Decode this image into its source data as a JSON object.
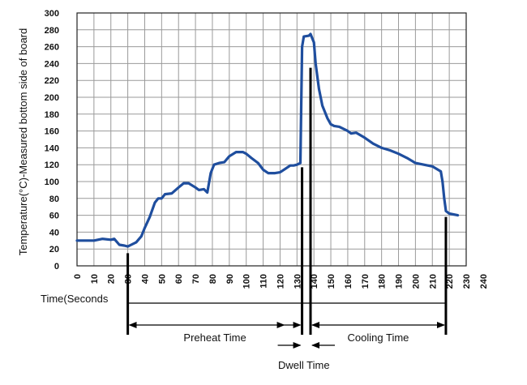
{
  "chart_data": {
    "type": "line",
    "title": "",
    "xlabel": "Time(Seconds",
    "ylabel": "Temperature(°C)-Measured bottom side of board",
    "xlim": [
      0,
      230
    ],
    "ylim": [
      0,
      300
    ],
    "x_ticks": [
      "0",
      "10",
      "20",
      "30",
      "40",
      "50",
      "60",
      "70",
      "80",
      "90",
      "100",
      "110",
      "120",
      "130",
      "140",
      "150",
      "160",
      "170",
      "180",
      "190",
      "200",
      "210",
      "220",
      "230",
      "240"
    ],
    "y_ticks": [
      "0",
      "20",
      "40",
      "60",
      "80",
      "100",
      "120",
      "140",
      "160",
      "180",
      "200",
      "220",
      "240",
      "260",
      "280",
      "300"
    ],
    "grid": true,
    "series": [
      {
        "color": "#1f4e9e",
        "points": [
          [
            0,
            30
          ],
          [
            10,
            30
          ],
          [
            15,
            32
          ],
          [
            20,
            31
          ],
          [
            22,
            32
          ],
          [
            25,
            25
          ],
          [
            28,
            24
          ],
          [
            30,
            23
          ],
          [
            32,
            25
          ],
          [
            35,
            28
          ],
          [
            38,
            35
          ],
          [
            40,
            45
          ],
          [
            43,
            58
          ],
          [
            46,
            75
          ],
          [
            48,
            80
          ],
          [
            50,
            80
          ],
          [
            52,
            85
          ],
          [
            56,
            86
          ],
          [
            60,
            93
          ],
          [
            63,
            98
          ],
          [
            66,
            98
          ],
          [
            70,
            93
          ],
          [
            72,
            90
          ],
          [
            75,
            91
          ],
          [
            77,
            87
          ],
          [
            79,
            110
          ],
          [
            81,
            120
          ],
          [
            84,
            122
          ],
          [
            87,
            123
          ],
          [
            90,
            130
          ],
          [
            94,
            135
          ],
          [
            98,
            135
          ],
          [
            100,
            133
          ],
          [
            103,
            128
          ],
          [
            107,
            122
          ],
          [
            110,
            114
          ],
          [
            113,
            110
          ],
          [
            117,
            110
          ],
          [
            120,
            111
          ],
          [
            123,
            115
          ],
          [
            126,
            119
          ],
          [
            128,
            119
          ],
          [
            130,
            120
          ],
          [
            132,
            122
          ],
          [
            133,
            260
          ],
          [
            134,
            272
          ],
          [
            137,
            273
          ],
          [
            138,
            275
          ],
          [
            140,
            265
          ],
          [
            141,
            240
          ],
          [
            143,
            210
          ],
          [
            145,
            190
          ],
          [
            148,
            175
          ],
          [
            150,
            168
          ],
          [
            152,
            166
          ],
          [
            155,
            165
          ],
          [
            160,
            160
          ],
          [
            162,
            157
          ],
          [
            165,
            158
          ],
          [
            170,
            152
          ],
          [
            175,
            145
          ],
          [
            180,
            140
          ],
          [
            185,
            137
          ],
          [
            190,
            133
          ],
          [
            195,
            128
          ],
          [
            200,
            122
          ],
          [
            205,
            120
          ],
          [
            210,
            118
          ],
          [
            215,
            112
          ],
          [
            216,
            100
          ],
          [
            217,
            80
          ],
          [
            218,
            65
          ],
          [
            220,
            62
          ],
          [
            225,
            60
          ]
        ]
      }
    ],
    "annotations": [
      {
        "text": "Preheat Time",
        "from": 30,
        "to": 133
      },
      {
        "text": "Dwell Time",
        "from": 133,
        "to": 138
      },
      {
        "text": "Cooling Time",
        "from": 138,
        "to": 218
      }
    ],
    "markers": [
      {
        "x": 30,
        "y_top": 15
      },
      {
        "x": 133,
        "y_top": 117
      },
      {
        "x": 138,
        "y_top": 235
      },
      {
        "x": 218,
        "y_top": 58
      }
    ]
  }
}
